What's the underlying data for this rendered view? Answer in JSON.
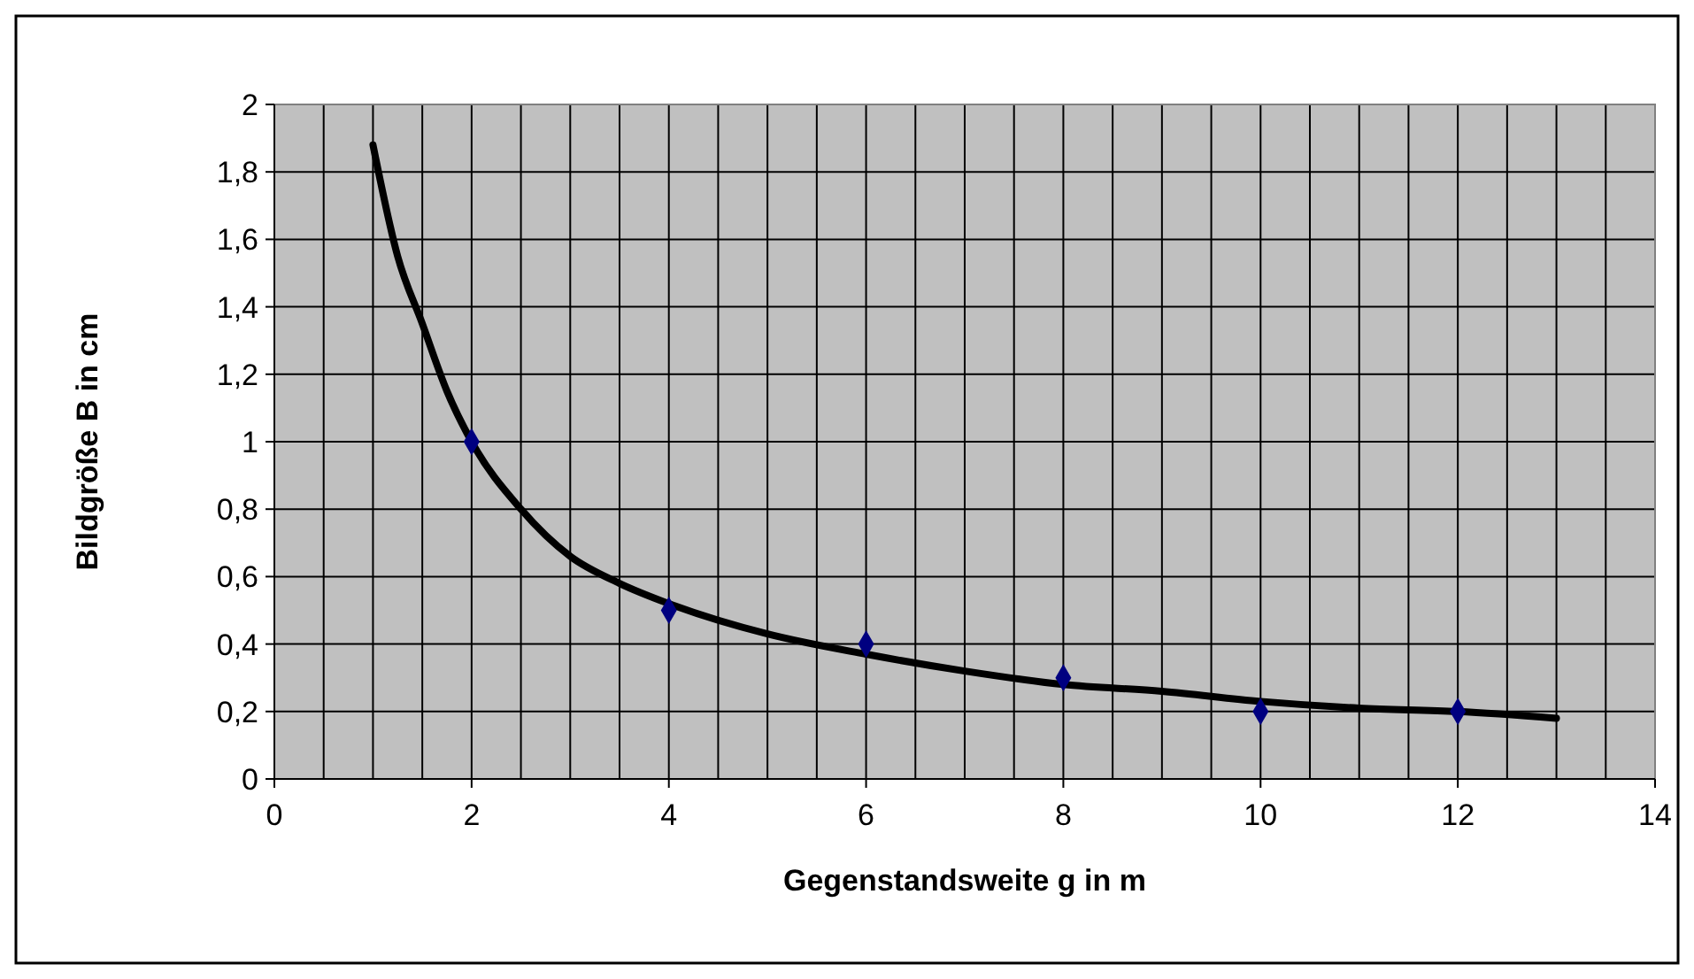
{
  "chart_data": {
    "type": "scatter",
    "xlabel": "Gegenstandsweite g in m",
    "ylabel": "Bildgröße B in cm",
    "xlim": [
      0,
      14
    ],
    "ylim": [
      0,
      2
    ],
    "xticks": [
      0,
      {
        "value": 0.5,
        "label": null
      },
      {
        "value": 1,
        "label": null
      },
      {
        "value": 1.5,
        "label": null
      },
      2,
      {
        "value": 2.5,
        "label": null
      },
      {
        "value": 3,
        "label": null
      },
      {
        "value": 3.5,
        "label": null
      },
      4,
      {
        "value": 4.5,
        "label": null
      },
      {
        "value": 5,
        "label": null
      },
      {
        "value": 5.5,
        "label": null
      },
      6,
      {
        "value": 6.5,
        "label": null
      },
      {
        "value": 7,
        "label": null
      },
      {
        "value": 7.5,
        "label": null
      },
      8,
      {
        "value": 8.5,
        "label": null
      },
      {
        "value": 9,
        "label": null
      },
      {
        "value": 9.5,
        "label": null
      },
      10,
      {
        "value": 10.5,
        "label": null
      },
      {
        "value": 11,
        "label": null
      },
      {
        "value": 11.5,
        "label": null
      },
      12,
      {
        "value": 12.5,
        "label": null
      },
      {
        "value": 13,
        "label": null
      },
      {
        "value": 13.5,
        "label": null
      },
      14
    ],
    "yticks": [
      0,
      {
        "value": 0.2,
        "label": "0,2"
      },
      {
        "value": 0.4,
        "label": "0,4"
      },
      {
        "value": 0.6,
        "label": "0,6"
      },
      {
        "value": 0.8,
        "label": "0,8"
      },
      1,
      {
        "value": 1.2,
        "label": "1,2"
      },
      {
        "value": 1.4,
        "label": "1,4"
      },
      {
        "value": 1.6,
        "label": "1,6"
      },
      {
        "value": 1.8,
        "label": "1,8"
      },
      2
    ],
    "grid": true,
    "series": [
      {
        "type": "line",
        "color": "#000000",
        "marker": "none",
        "line_style": "solid",
        "x": [
          1,
          1.25,
          1.5,
          1.75,
          2,
          2.5,
          3,
          3.5,
          4,
          5,
          6,
          7,
          8,
          9,
          10,
          11,
          12,
          13
        ],
        "values": [
          1.88,
          1.55,
          1.35,
          1.15,
          1.0,
          0.8,
          0.66,
          0.58,
          0.52,
          0.43,
          0.37,
          0.32,
          0.28,
          0.26,
          0.23,
          0.21,
          0.2,
          0.18
        ]
      },
      {
        "color": "#000080",
        "marker": "diamond",
        "x": [
          2,
          4,
          6,
          8,
          10,
          12
        ],
        "values": [
          1,
          0.5,
          0.4,
          0.3,
          0.2,
          0.2
        ]
      }
    ]
  }
}
